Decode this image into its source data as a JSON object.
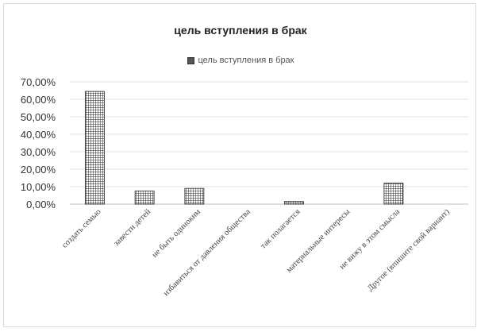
{
  "chart_data": {
    "type": "bar",
    "title": "цель вступления в брак",
    "series": [
      {
        "name": "цель вступления в брак",
        "values": [
          64.5,
          7.5,
          9.0,
          0.0,
          1.5,
          0.0,
          12.0,
          0.0
        ]
      }
    ],
    "categories": [
      "создать семью",
      "завести детей",
      "не быть одиноким",
      "избавиться от давления общества",
      "так полагается",
      "материальные интересы",
      "не вижу в этом смысла",
      "Другое (впишите свой вариант)"
    ],
    "yticks": [
      "0,00%",
      "10,00%",
      "20,00%",
      "30,00%",
      "40,00%",
      "50,00%",
      "60,00%",
      "70,00%"
    ],
    "ylim": [
      0,
      70
    ],
    "grid": true,
    "legend": "top",
    "colors": {
      "bar_fill": "#ffffff",
      "bar_pattern": "#222222",
      "grid": "#e0e0e0"
    }
  }
}
